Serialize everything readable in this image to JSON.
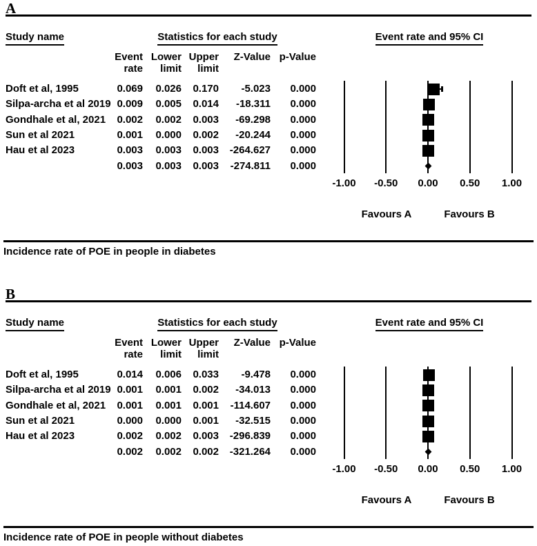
{
  "figure": {
    "panels": [
      {
        "label": "A",
        "study_header": "Study name",
        "stats_header": "Statistics for each study",
        "plot_header": "Event rate and 95% CI",
        "columns": [
          [
            "Event",
            "rate"
          ],
          [
            "Lower",
            "limit"
          ],
          [
            "Upper",
            "limit"
          ],
          [
            "",
            "Z-Value"
          ],
          [
            "",
            "p-Value"
          ]
        ],
        "favours_left": "Favours A",
        "favours_right": "Favours B",
        "caption": "Incidence rate of POE in people in diabetes"
      },
      {
        "label": "B",
        "study_header": "Study name",
        "stats_header": "Statistics for each study",
        "plot_header": "Event rate and 95% CI",
        "columns": [
          [
            "Event",
            "rate"
          ],
          [
            "Lower",
            "limit"
          ],
          [
            "Upper",
            "limit"
          ],
          [
            "",
            "Z-Value"
          ],
          [
            "",
            "p-Value"
          ]
        ],
        "favours_left": "Favours A",
        "favours_right": "Favours B",
        "caption": "Incidence rate of POE in people without diabetes"
      }
    ],
    "marker_color": "#000000",
    "background_color": "#ffffff"
  },
  "chart_data": [
    {
      "type": "scatter",
      "subtype": "forest-plot",
      "title": "Event rate and 95% CI",
      "caption": "Incidence rate of POE in people in diabetes",
      "xlim": [
        -1,
        1
      ],
      "x_ticks": [
        -1.0,
        -0.5,
        0.0,
        0.5,
        1.0
      ],
      "x_tick_labels": [
        "-1.00",
        "-0.50",
        "0.00",
        "0.50",
        "1.00"
      ],
      "xlabel_left": "Favours A",
      "xlabel_right": "Favours B",
      "rows": [
        {
          "study": "Doft et al, 1995",
          "event_rate": 0.069,
          "lower": 0.026,
          "upper": 0.17,
          "z": -5.023,
          "p": 0.0,
          "summary": false
        },
        {
          "study": "Silpa-archa et al 2019",
          "event_rate": 0.009,
          "lower": 0.005,
          "upper": 0.014,
          "z": -18.311,
          "p": 0.0,
          "summary": false
        },
        {
          "study": "Gondhale et al, 2021",
          "event_rate": 0.002,
          "lower": 0.002,
          "upper": 0.003,
          "z": -69.298,
          "p": 0.0,
          "summary": false
        },
        {
          "study": "Sun et al 2021",
          "event_rate": 0.001,
          "lower": 0.0,
          "upper": 0.002,
          "z": -20.244,
          "p": 0.0,
          "summary": false
        },
        {
          "study": "Hau et al 2023",
          "event_rate": 0.003,
          "lower": 0.003,
          "upper": 0.003,
          "z": -264.627,
          "p": 0.0,
          "summary": false
        },
        {
          "study": "",
          "event_rate": 0.003,
          "lower": 0.003,
          "upper": 0.003,
          "z": -274.811,
          "p": 0.0,
          "summary": true
        }
      ]
    },
    {
      "type": "scatter",
      "subtype": "forest-plot",
      "title": "Event rate and 95% CI",
      "caption": "Incidence rate of POE in people without diabetes",
      "xlim": [
        -1,
        1
      ],
      "x_ticks": [
        -1.0,
        -0.5,
        0.0,
        0.5,
        1.0
      ],
      "x_tick_labels": [
        "-1.00",
        "-0.50",
        "0.00",
        "0.50",
        "1.00"
      ],
      "xlabel_left": "Favours A",
      "xlabel_right": "Favours B",
      "rows": [
        {
          "study": "Doft et al, 1995",
          "event_rate": 0.014,
          "lower": 0.006,
          "upper": 0.033,
          "z": -9.478,
          "p": 0.0,
          "summary": false
        },
        {
          "study": "Silpa-archa et al 2019",
          "event_rate": 0.001,
          "lower": 0.001,
          "upper": 0.002,
          "z": -34.013,
          "p": 0.0,
          "summary": false
        },
        {
          "study": "Gondhale et al, 2021",
          "event_rate": 0.001,
          "lower": 0.001,
          "upper": 0.001,
          "z": -114.607,
          "p": 0.0,
          "summary": false
        },
        {
          "study": "Sun et al 2021",
          "event_rate": 0.0,
          "lower": 0.0,
          "upper": 0.001,
          "z": -32.515,
          "p": 0.0,
          "summary": false
        },
        {
          "study": "Hau et al 2023",
          "event_rate": 0.002,
          "lower": 0.002,
          "upper": 0.003,
          "z": -296.839,
          "p": 0.0,
          "summary": false
        },
        {
          "study": "",
          "event_rate": 0.002,
          "lower": 0.002,
          "upper": 0.002,
          "z": -321.264,
          "p": 0.0,
          "summary": true
        }
      ]
    }
  ]
}
